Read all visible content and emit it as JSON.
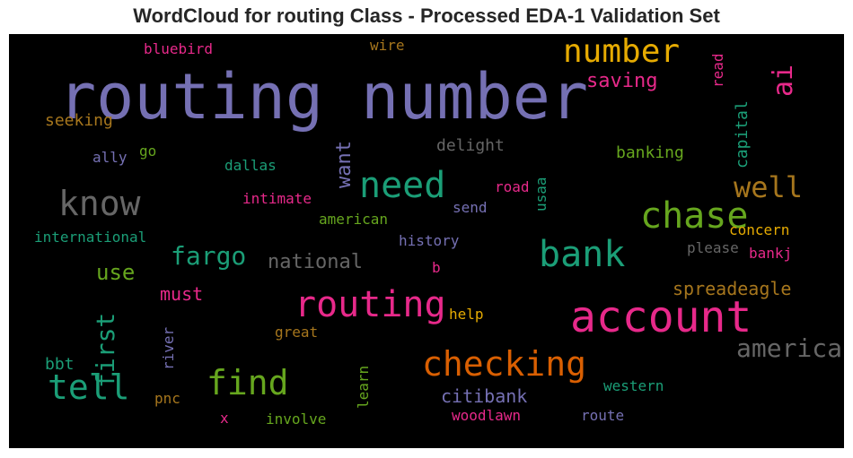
{
  "chart_data": {
    "type": "wordcloud",
    "title": "WordCloud for routing Class - Processed EDA-1 Validation Set",
    "background": "#000000",
    "colormap": "Dark2",
    "words": [
      {
        "text": "routing number",
        "color": "#7570b3",
        "vertical": false
      },
      {
        "text": "account",
        "color": "#e7298a",
        "vertical": false
      },
      {
        "text": "number",
        "color": "#e6ab02",
        "vertical": false
      },
      {
        "text": "bank",
        "color": "#1b9e77",
        "vertical": false
      },
      {
        "text": "chase",
        "color": "#66a61e",
        "vertical": false
      },
      {
        "text": "routing",
        "color": "#e7298a",
        "vertical": false
      },
      {
        "text": "checking",
        "color": "#d95f02",
        "vertical": false
      },
      {
        "text": "need",
        "color": "#1b9e77",
        "vertical": false
      },
      {
        "text": "know",
        "color": "#666666",
        "vertical": false
      },
      {
        "text": "tell",
        "color": "#1b9e77",
        "vertical": false
      },
      {
        "text": "find",
        "color": "#66a61e",
        "vertical": false
      },
      {
        "text": "well",
        "color": "#a6761d",
        "vertical": false
      },
      {
        "text": "america",
        "color": "#666666",
        "vertical": false
      },
      {
        "text": "ai",
        "color": "#e7298a",
        "vertical": true
      },
      {
        "text": "fargo",
        "color": "#1b9e77",
        "vertical": false
      },
      {
        "text": "first",
        "color": "#1b9e77",
        "vertical": true
      },
      {
        "text": "use",
        "color": "#66a61e",
        "vertical": false
      },
      {
        "text": "citibank",
        "color": "#7570b3",
        "vertical": false
      },
      {
        "text": "national",
        "color": "#666666",
        "vertical": false
      },
      {
        "text": "saving",
        "color": "#e7298a",
        "vertical": false
      },
      {
        "text": "spreadeagle",
        "color": "#a6761d",
        "vertical": false
      },
      {
        "text": "want",
        "color": "#7570b3",
        "vertical": true
      },
      {
        "text": "must",
        "color": "#e7298a",
        "vertical": false
      },
      {
        "text": "bbt",
        "color": "#1b9e77",
        "vertical": false
      },
      {
        "text": "delight",
        "color": "#666666",
        "vertical": false
      },
      {
        "text": "banking",
        "color": "#66a61e",
        "vertical": false
      },
      {
        "text": "capital",
        "color": "#1b9e77",
        "vertical": true
      },
      {
        "text": "seeking",
        "color": "#a6761d",
        "vertical": false
      },
      {
        "text": "bluebird",
        "color": "#e7298a",
        "vertical": false
      },
      {
        "text": "wire",
        "color": "#a6761d",
        "vertical": false
      },
      {
        "text": "read",
        "color": "#e7298a",
        "vertical": true
      },
      {
        "text": "ally",
        "color": "#7570b3",
        "vertical": false
      },
      {
        "text": "go",
        "color": "#66a61e",
        "vertical": false
      },
      {
        "text": "dallas",
        "color": "#1b9e77",
        "vertical": false
      },
      {
        "text": "intimate",
        "color": "#e7298a",
        "vertical": false
      },
      {
        "text": "road",
        "color": "#e7298a",
        "vertical": false
      },
      {
        "text": "usaa",
        "color": "#1b9e77",
        "vertical": true
      },
      {
        "text": "american",
        "color": "#66a61e",
        "vertical": false
      },
      {
        "text": "send",
        "color": "#7570b3",
        "vertical": false
      },
      {
        "text": "concern",
        "color": "#e6ab02",
        "vertical": false
      },
      {
        "text": "international",
        "color": "#1b9e77",
        "vertical": false
      },
      {
        "text": "history",
        "color": "#7570b3",
        "vertical": false
      },
      {
        "text": "please",
        "color": "#666666",
        "vertical": false
      },
      {
        "text": "bankj",
        "color": "#e7298a",
        "vertical": false
      },
      {
        "text": "b",
        "color": "#e7298a",
        "vertical": false
      },
      {
        "text": "help",
        "color": "#e6ab02",
        "vertical": false
      },
      {
        "text": "great",
        "color": "#a6761d",
        "vertical": false
      },
      {
        "text": "river",
        "color": "#7570b3",
        "vertical": true
      },
      {
        "text": "learn",
        "color": "#66a61e",
        "vertical": true
      },
      {
        "text": "western",
        "color": "#1b9e77",
        "vertical": false
      },
      {
        "text": "pnc",
        "color": "#a6761d",
        "vertical": false
      },
      {
        "text": "x",
        "color": "#e7298a",
        "vertical": false
      },
      {
        "text": "involve",
        "color": "#66a61e",
        "vertical": false
      },
      {
        "text": "woodlawn",
        "color": "#e7298a",
        "vertical": false
      },
      {
        "text": "route",
        "color": "#7570b3",
        "vertical": false
      }
    ]
  }
}
